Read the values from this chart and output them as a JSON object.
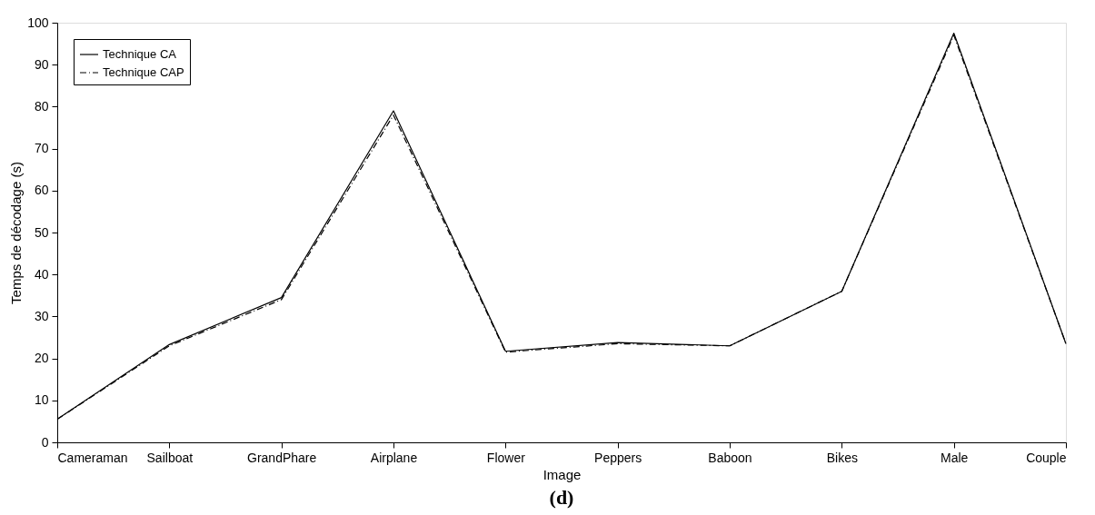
{
  "chart_data": {
    "type": "line",
    "xlabel": "Image",
    "ylabel": "Temps de décodage (s)",
    "categories": [
      "Cameraman",
      "Sailboat",
      "GrandPhare",
      "Airplane",
      "Flower",
      "Peppers",
      "Baboon",
      "Bikes",
      "Male",
      "Couple"
    ],
    "series": [
      {
        "name": "Technique CA",
        "color": "#000000",
        "line_style": "solid",
        "values": [
          5.5,
          23.3,
          34.5,
          79,
          21.7,
          23.8,
          23,
          36,
          97.5,
          23.5
        ]
      },
      {
        "name": "Technique CAP",
        "color": "#000000",
        "line_style": "dashed",
        "values": [
          5.5,
          23,
          34,
          78,
          21.5,
          23.5,
          23,
          36,
          97,
          23.5
        ]
      }
    ],
    "ylim": [
      0,
      100
    ],
    "yticks": [
      0,
      10,
      20,
      30,
      40,
      50,
      60,
      70,
      80,
      90,
      100
    ],
    "grid": false,
    "legend": "top left",
    "marker": "none",
    "annotations": [
      "(d)"
    ]
  }
}
